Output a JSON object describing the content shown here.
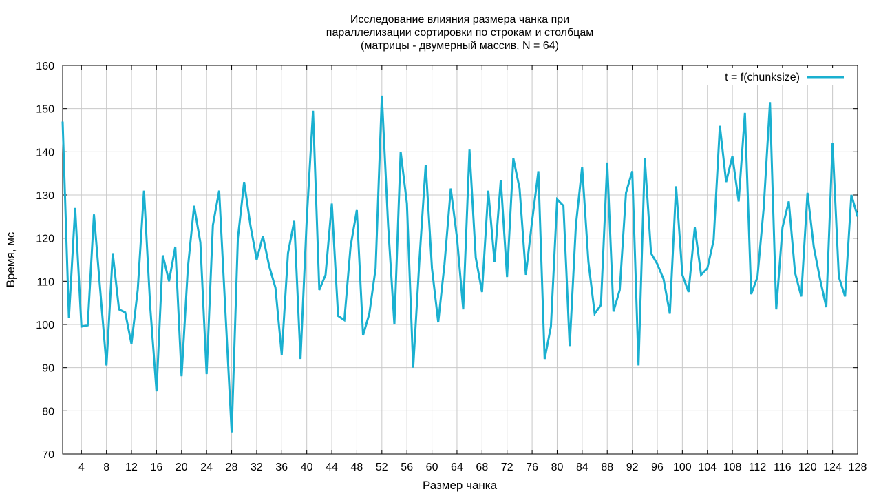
{
  "chart_data": {
    "type": "line",
    "title": [
      "Исследование влияния размера чанка при",
      "параллелизации сортировки по строкам и столбцам",
      "(матрицы - двумерный массив, N = 64)"
    ],
    "xlabel": "Размер чанка",
    "ylabel": "Время, мс",
    "xlim": [
      1,
      128
    ],
    "ylim": [
      70,
      160
    ],
    "xticks": [
      4,
      8,
      12,
      16,
      20,
      24,
      28,
      32,
      36,
      40,
      44,
      48,
      52,
      56,
      60,
      64,
      68,
      72,
      76,
      80,
      84,
      88,
      92,
      96,
      100,
      104,
      108,
      112,
      116,
      120,
      124,
      128
    ],
    "yticks": [
      70,
      80,
      90,
      100,
      110,
      120,
      130,
      140,
      150,
      160
    ],
    "grid": true,
    "legend_position": "top-right",
    "series": [
      {
        "name": "t = f(chunksize)",
        "color": "#1ab0d0",
        "x": [
          1,
          2,
          3,
          4,
          5,
          6,
          7,
          8,
          9,
          10,
          11,
          12,
          13,
          14,
          15,
          16,
          17,
          18,
          19,
          20,
          21,
          22,
          23,
          24,
          25,
          26,
          27,
          28,
          29,
          30,
          31,
          32,
          33,
          34,
          35,
          36,
          37,
          38,
          39,
          40,
          41,
          42,
          43,
          44,
          45,
          46,
          47,
          48,
          49,
          50,
          51,
          52,
          53,
          54,
          55,
          56,
          57,
          58,
          59,
          60,
          61,
          62,
          63,
          64,
          65,
          66,
          67,
          68,
          69,
          70,
          71,
          72,
          73,
          74,
          75,
          76,
          77,
          78,
          79,
          80,
          81,
          82,
          83,
          84,
          85,
          86,
          87,
          88,
          89,
          90,
          91,
          92,
          93,
          94,
          95,
          96,
          97,
          98,
          99,
          100,
          101,
          102,
          103,
          104,
          105,
          106,
          107,
          108,
          109,
          110,
          111,
          112,
          113,
          114,
          115,
          116,
          117,
          118,
          119,
          120,
          121,
          122,
          123,
          124,
          125,
          126,
          127,
          128
        ],
        "values": [
          147,
          101.5,
          127,
          99.5,
          99.8,
          125.5,
          108,
          90.5,
          116.5,
          103.5,
          102.8,
          95.5,
          108,
          131,
          104,
          84.5,
          116,
          110,
          118,
          88,
          113,
          127.5,
          119,
          88.5,
          123,
          131,
          103,
          75,
          120,
          133,
          123,
          115,
          120.5,
          113.5,
          108.5,
          93,
          116.5,
          124,
          92,
          124.5,
          149.5,
          108,
          111.5,
          128,
          102,
          101,
          118,
          126.5,
          97.5,
          102.5,
          113,
          153,
          123,
          100,
          140,
          128,
          90,
          115,
          137,
          113,
          100.5,
          114,
          131.5,
          120,
          103.5,
          140.5,
          115.5,
          107.5,
          131,
          114.5,
          133.5,
          111,
          138.5,
          131.5,
          111.5,
          124,
          135.5,
          92,
          99.5,
          129,
          127.5,
          95,
          123,
          136.5,
          114.5,
          102.5,
          104.5,
          137.5,
          103,
          108,
          130.5,
          135.5,
          90.5,
          138.5,
          116.5,
          114,
          110.5,
          102.5,
          132,
          111.5,
          107.5,
          122.5,
          111.5,
          113,
          119.5,
          146,
          133,
          139,
          128.5,
          149,
          107,
          111,
          127,
          151.5,
          103.5,
          122.5,
          128.5,
          112,
          106.5,
          130.5,
          118,
          110.5,
          104,
          142,
          111,
          106.5,
          130,
          125
        ]
      }
    ]
  }
}
